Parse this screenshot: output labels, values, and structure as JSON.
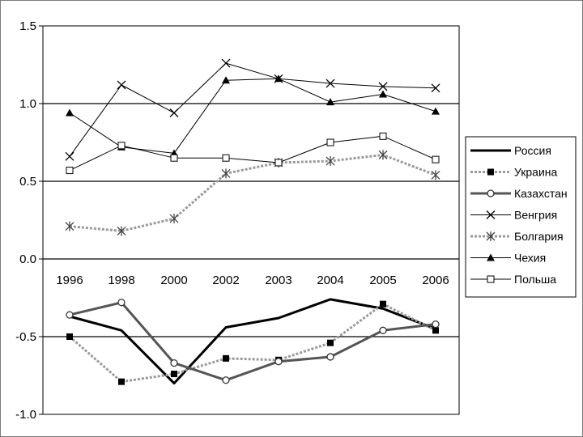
{
  "chart_data": {
    "type": "line",
    "title": "",
    "xlabel": "",
    "ylabel": "",
    "categories": [
      "1996",
      "1998",
      "2000",
      "2002",
      "2003",
      "2004",
      "2005",
      "2006"
    ],
    "ylim": [
      -1.0,
      1.5
    ],
    "yticks": [
      1.5,
      1.0,
      0.5,
      0.0,
      -0.5,
      -1.0
    ],
    "ytick_labels": [
      "1.5",
      "1.0",
      "0.5",
      "0.0",
      "-0.5",
      "-1.0"
    ],
    "grid": true,
    "legend_position": "right",
    "series": [
      {
        "name": "Россия",
        "values": [
          -0.37,
          -0.46,
          -0.8,
          -0.44,
          -0.38,
          -0.26,
          -0.32,
          -0.45
        ],
        "color": "#000000",
        "dash": "",
        "width": 3,
        "marker": "none"
      },
      {
        "name": "Украина",
        "values": [
          -0.5,
          -0.79,
          -0.74,
          -0.64,
          -0.65,
          -0.54,
          -0.29,
          -0.46
        ],
        "color": "#9a9a9a",
        "dash": "3,2",
        "width": 3,
        "marker": "square-filled"
      },
      {
        "name": "Казахстан",
        "values": [
          -0.36,
          -0.28,
          -0.67,
          -0.78,
          -0.66,
          -0.63,
          -0.46,
          -0.42
        ],
        "color": "#555555",
        "dash": "",
        "width": 3,
        "marker": "circle-open"
      },
      {
        "name": "Венгрия",
        "values": [
          0.66,
          1.12,
          0.94,
          1.26,
          1.16,
          1.13,
          1.11,
          1.1
        ],
        "color": "#000000",
        "dash": "",
        "width": 1,
        "marker": "x"
      },
      {
        "name": "Болгария",
        "values": [
          0.21,
          0.18,
          0.26,
          0.55,
          0.62,
          0.63,
          0.67,
          0.54
        ],
        "color": "#9a9a9a",
        "dash": "3,2",
        "width": 3,
        "marker": "asterisk"
      },
      {
        "name": "Чехия",
        "values": [
          0.94,
          0.72,
          0.68,
          1.15,
          1.16,
          1.01,
          1.06,
          0.95
        ],
        "color": "#000000",
        "dash": "",
        "width": 1,
        "marker": "triangle-filled"
      },
      {
        "name": "Польша",
        "values": [
          0.57,
          0.73,
          0.65,
          0.65,
          0.62,
          0.75,
          0.79,
          0.64
        ],
        "color": "#000000",
        "dash": "",
        "width": 1,
        "marker": "square-open"
      }
    ]
  }
}
